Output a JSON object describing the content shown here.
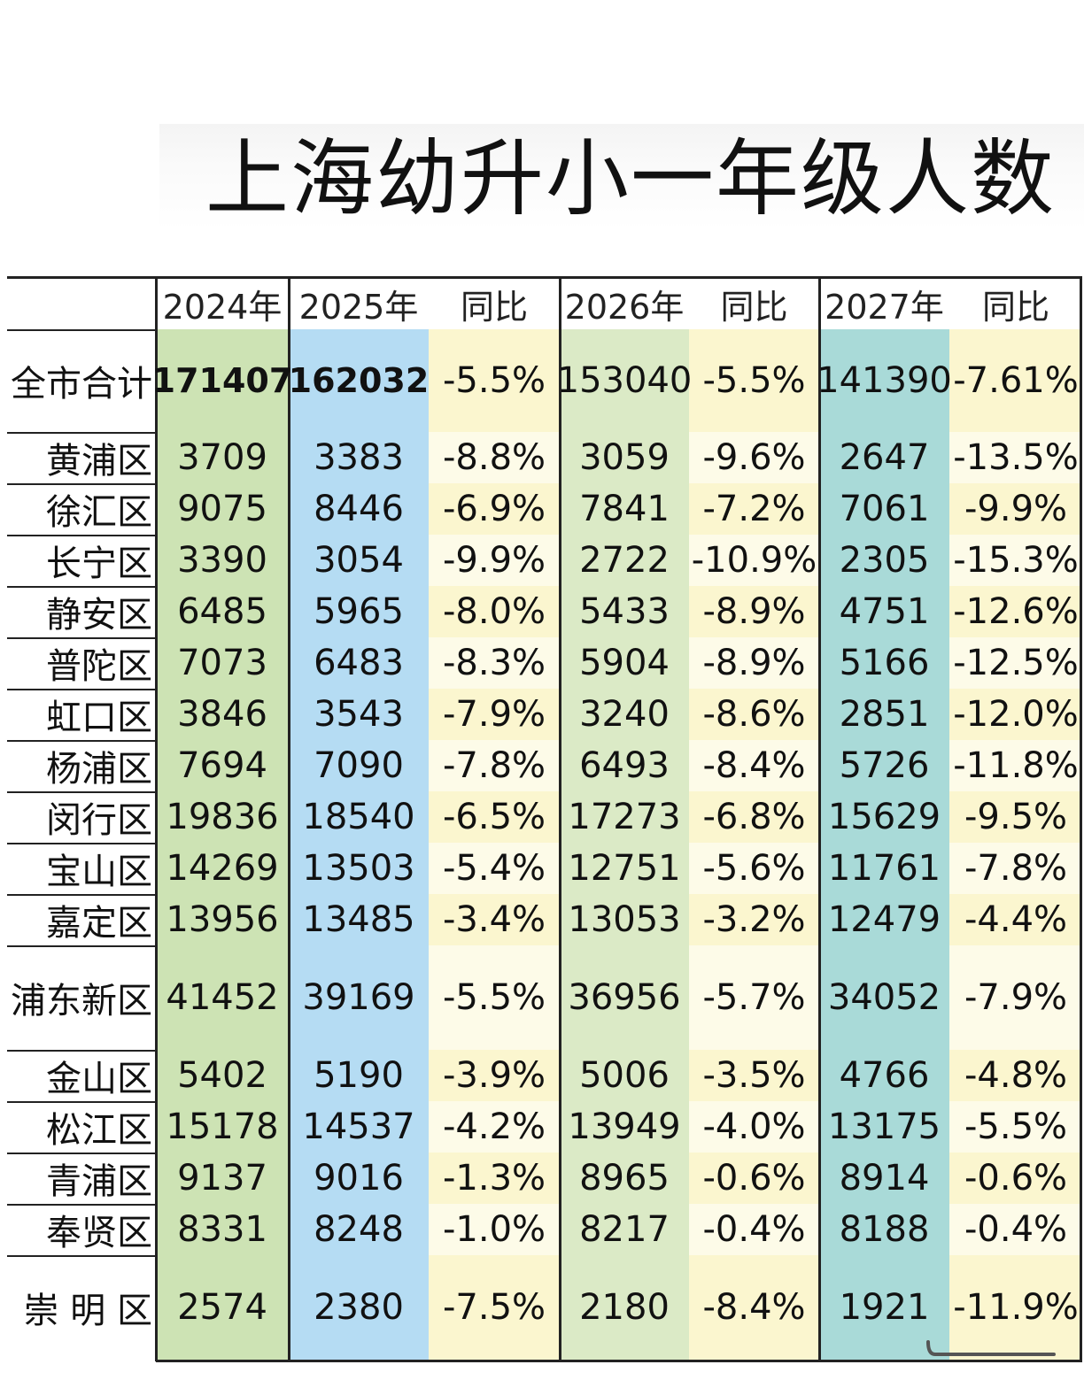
{
  "title": "上海幼升小一年级人数",
  "colors": {
    "green": "#cde3b4",
    "blue": "#b5dcf3",
    "yellow": "#fbf6cf",
    "teal": "#a9dad8",
    "lightgreen": "#dbeac6"
  },
  "headers": [
    "2024年",
    "2025年",
    "同比",
    "2026年",
    "同比",
    "2027年",
    "同比"
  ],
  "rows": [
    {
      "district": "全市合计",
      "y2024": "171407",
      "y2025": "162032",
      "yoy2025": "-5.5%",
      "y2026": "153040",
      "yoy2026": "-5.5%",
      "y2027": "141390",
      "yoy2027": "-7.61%"
    },
    {
      "district": "黄浦区",
      "y2024": "3709",
      "y2025": "3383",
      "yoy2025": "-8.8%",
      "y2026": "3059",
      "yoy2026": "-9.6%",
      "y2027": "2647",
      "yoy2027": "-13.5%"
    },
    {
      "district": "徐汇区",
      "y2024": "9075",
      "y2025": "8446",
      "yoy2025": "-6.9%",
      "y2026": "7841",
      "yoy2026": "-7.2%",
      "y2027": "7061",
      "yoy2027": "-9.9%"
    },
    {
      "district": "长宁区",
      "y2024": "3390",
      "y2025": "3054",
      "yoy2025": "-9.9%",
      "y2026": "2722",
      "yoy2026": "-10.9%",
      "y2027": "2305",
      "yoy2027": "-15.3%"
    },
    {
      "district": "静安区",
      "y2024": "6485",
      "y2025": "5965",
      "yoy2025": "-8.0%",
      "y2026": "5433",
      "yoy2026": "-8.9%",
      "y2027": "4751",
      "yoy2027": "-12.6%"
    },
    {
      "district": "普陀区",
      "y2024": "7073",
      "y2025": "6483",
      "yoy2025": "-8.3%",
      "y2026": "5904",
      "yoy2026": "-8.9%",
      "y2027": "5166",
      "yoy2027": "-12.5%"
    },
    {
      "district": "虹口区",
      "y2024": "3846",
      "y2025": "3543",
      "yoy2025": "-7.9%",
      "y2026": "3240",
      "yoy2026": "-8.6%",
      "y2027": "2851",
      "yoy2027": "-12.0%"
    },
    {
      "district": "杨浦区",
      "y2024": "7694",
      "y2025": "7090",
      "yoy2025": "-7.8%",
      "y2026": "6493",
      "yoy2026": "-8.4%",
      "y2027": "5726",
      "yoy2027": "-11.8%"
    },
    {
      "district": "闵行区",
      "y2024": "19836",
      "y2025": "18540",
      "yoy2025": "-6.5%",
      "y2026": "17273",
      "yoy2026": "-6.8%",
      "y2027": "15629",
      "yoy2027": "-9.5%"
    },
    {
      "district": "宝山区",
      "y2024": "14269",
      "y2025": "13503",
      "yoy2025": "-5.4%",
      "y2026": "12751",
      "yoy2026": "-5.6%",
      "y2027": "11761",
      "yoy2027": "-7.8%"
    },
    {
      "district": "嘉定区",
      "y2024": "13956",
      "y2025": "13485",
      "yoy2025": "-3.4%",
      "y2026": "13053",
      "yoy2026": "-3.2%",
      "y2027": "12479",
      "yoy2027": "-4.4%"
    },
    {
      "district": "浦东新区",
      "y2024": "41452",
      "y2025": "39169",
      "yoy2025": "-5.5%",
      "y2026": "36956",
      "yoy2026": "-5.7%",
      "y2027": "34052",
      "yoy2027": "-7.9%"
    },
    {
      "district": "金山区",
      "y2024": "5402",
      "y2025": "5190",
      "yoy2025": "-3.9%",
      "y2026": "5006",
      "yoy2026": "-3.5%",
      "y2027": "4766",
      "yoy2027": "-4.8%"
    },
    {
      "district": "松江区",
      "y2024": "15178",
      "y2025": "14537",
      "yoy2025": "-4.2%",
      "y2026": "13949",
      "yoy2026": "-4.0%",
      "y2027": "13175",
      "yoy2027": "-5.5%"
    },
    {
      "district": "青浦区",
      "y2024": "9137",
      "y2025": "9016",
      "yoy2025": "-1.3%",
      "y2026": "8965",
      "yoy2026": "-0.6%",
      "y2027": "8914",
      "yoy2027": "-0.6%"
    },
    {
      "district": "奉贤区",
      "y2024": "8331",
      "y2025": "8248",
      "yoy2025": "-1.0%",
      "y2026": "8217",
      "yoy2026": "-0.4%",
      "y2027": "8188",
      "yoy2027": "-0.4%"
    },
    {
      "district": "崇 明 区",
      "y2024": "2574",
      "y2025": "2380",
      "yoy2025": "-7.5%",
      "y2026": "2180",
      "yoy2026": "-8.4%",
      "y2027": "1921",
      "yoy2027": "-11.9%"
    }
  ]
}
